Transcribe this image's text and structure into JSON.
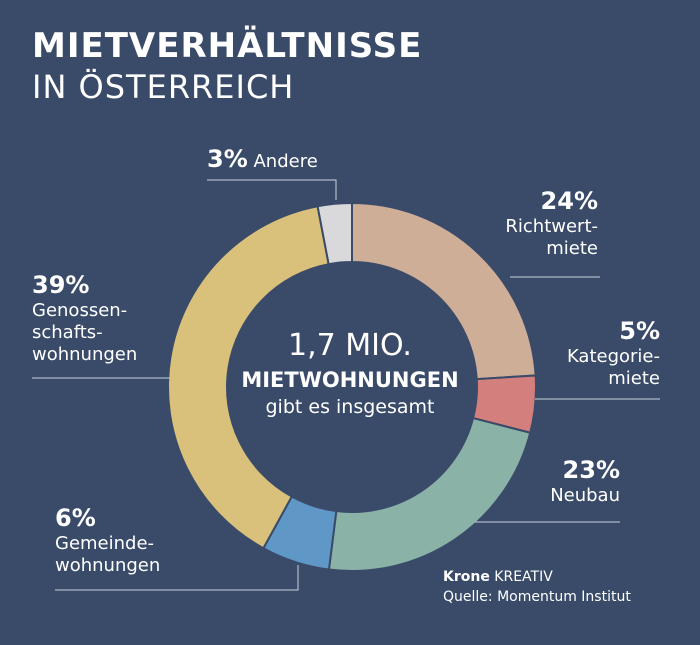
{
  "header": {
    "title": "MIETVERHÄLTNISSE",
    "subtitle": "IN ÖSTERREICH"
  },
  "center": {
    "line1": "1,7 MIO.",
    "line2": "MIETWOHNUNGEN",
    "line3": "gibt es insgesamt"
  },
  "footer": {
    "brand": "Krone",
    "brand_suffix": "KREATIV",
    "source": "Quelle: Momentum Institut"
  },
  "chart_data": {
    "type": "pie",
    "variant": "donut",
    "title": "MIETVERHÄLTNISSE IN ÖSTERREICH",
    "categories": [
      "Andere",
      "Richtwertmiete",
      "Kategoriemiete",
      "Neubau",
      "Gemeindewohnungen",
      "Genossenschaftswohnungen"
    ],
    "values": [
      3,
      24,
      5,
      23,
      6,
      39
    ],
    "unit": "%",
    "colors": [
      "#d9d9db",
      "#cfae98",
      "#d37f7d",
      "#8ab2a7",
      "#5f97c6",
      "#d9c17b"
    ],
    "labels": [
      {
        "pct": "3%",
        "text": "Andere"
      },
      {
        "pct": "24%",
        "lines": [
          "Richtwert-",
          "miete"
        ]
      },
      {
        "pct": "5%",
        "lines": [
          "Kategorie-",
          "miete"
        ]
      },
      {
        "pct": "23%",
        "lines": [
          "Neubau"
        ]
      },
      {
        "pct": "6%",
        "lines": [
          "Gemeinde-",
          "wohnungen"
        ]
      },
      {
        "pct": "39%",
        "lines": [
          "Genossen-",
          "schafts-",
          "wohnungen"
        ]
      }
    ]
  }
}
